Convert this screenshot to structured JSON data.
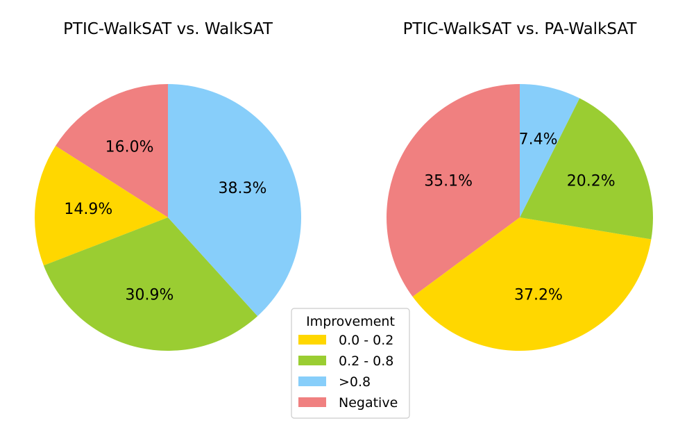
{
  "chart_data": [
    {
      "type": "pie",
      "title": "PTIC-WalkSAT vs. WalkSAT",
      "categories": [
        "0.0 - 0.2",
        "0.2 - 0.8",
        ">0.8",
        "Negative"
      ],
      "values": [
        14.9,
        30.9,
        38.3,
        16.0
      ],
      "labels": [
        "14.9%",
        "30.9%",
        "38.3%",
        "16.0%"
      ]
    },
    {
      "type": "pie",
      "title": "PTIC-WalkSAT vs. PA-WalkSAT",
      "categories": [
        "0.0 - 0.2",
        "0.2 - 0.8",
        ">0.8",
        "Negative"
      ],
      "values": [
        37.2,
        20.2,
        7.4,
        35.1
      ],
      "labels": [
        "37.2%",
        "20.2%",
        "7.4%",
        "35.1%"
      ]
    }
  ],
  "legend": {
    "title": "Improvement",
    "placement": "bottom-center",
    "items": [
      {
        "label": "0.0 - 0.2",
        "color": "#FFD700"
      },
      {
        "label": "0.2 - 0.8",
        "color": "#9ACD32"
      },
      {
        "label": ">0.8",
        "color": "#87CEFA"
      },
      {
        "label": "Negative",
        "color": "#F08080"
      }
    ]
  }
}
